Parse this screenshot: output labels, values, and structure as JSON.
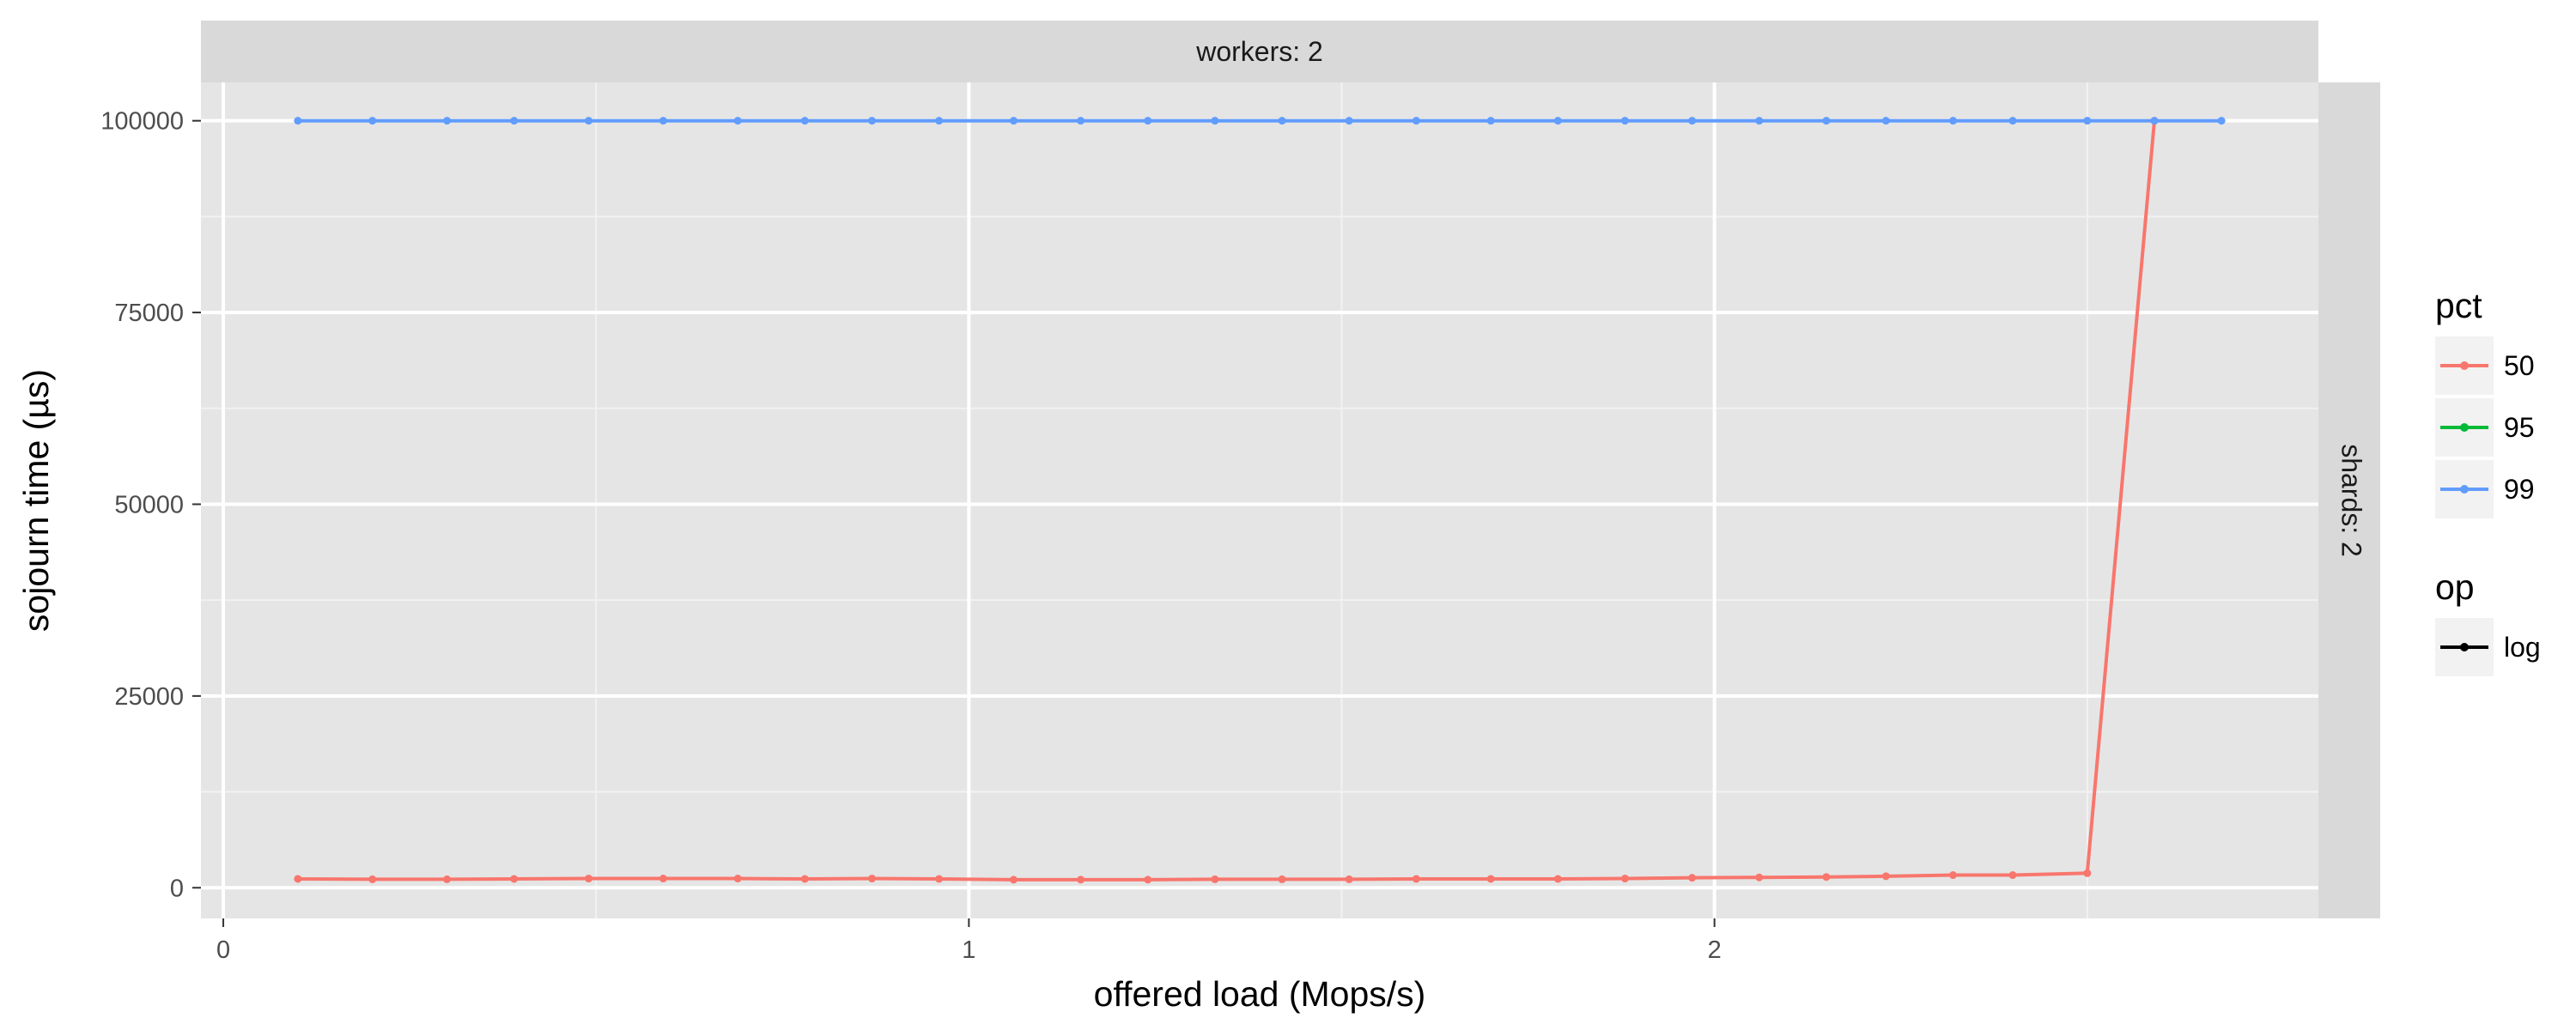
{
  "chart_data": {
    "type": "line",
    "facet": {
      "column_strip": "workers: 2",
      "row_strip": "shards: 2"
    },
    "xlabel": "offered load (Mops/s)",
    "ylabel": "sojourn time (µs)",
    "xlim": [
      -0.03,
      2.81
    ],
    "ylim": [
      -4000,
      105000
    ],
    "x_ticks": [
      0,
      1,
      2
    ],
    "x_tick_labels": [
      "0",
      "1",
      "2"
    ],
    "y_ticks": [
      0,
      25000,
      50000,
      75000,
      100000
    ],
    "y_tick_labels": [
      "0",
      "25000",
      "50000",
      "75000",
      "100000"
    ],
    "grid": true,
    "legend": {
      "placement": "right",
      "groups": [
        {
          "title": "pct",
          "entries": [
            {
              "label": "50",
              "color": "#F8766D"
            },
            {
              "label": "95",
              "color": "#00BA38"
            },
            {
              "label": "99",
              "color": "#619CFF"
            }
          ]
        },
        {
          "title": "op",
          "entries": [
            {
              "label": "log",
              "color": "#000000"
            }
          ]
        }
      ]
    },
    "series": [
      {
        "name": "50",
        "color": "#F8766D",
        "x": [
          0.1,
          0.2,
          0.3,
          0.39,
          0.49,
          0.59,
          0.69,
          0.78,
          0.87,
          0.96,
          1.06,
          1.15,
          1.24,
          1.33,
          1.42,
          1.51,
          1.6,
          1.7,
          1.79,
          1.88,
          1.97,
          2.06,
          2.15,
          2.23,
          2.32,
          2.4,
          2.5,
          2.59
        ],
        "y": [
          1150,
          1100,
          1100,
          1150,
          1200,
          1200,
          1200,
          1150,
          1200,
          1150,
          1050,
          1050,
          1050,
          1100,
          1100,
          1100,
          1150,
          1150,
          1150,
          1200,
          1300,
          1350,
          1400,
          1500,
          1650,
          1650,
          1900,
          100000
        ]
      },
      {
        "name": "99",
        "color": "#619CFF",
        "x": [
          0.1,
          0.2,
          0.3,
          0.39,
          0.49,
          0.59,
          0.69,
          0.78,
          0.87,
          0.96,
          1.06,
          1.15,
          1.24,
          1.33,
          1.42,
          1.51,
          1.6,
          1.7,
          1.79,
          1.88,
          1.97,
          2.06,
          2.15,
          2.23,
          2.32,
          2.4,
          2.5,
          2.59,
          2.68
        ],
        "y": [
          100000,
          100000,
          100000,
          100000,
          100000,
          100000,
          100000,
          100000,
          100000,
          100000,
          100000,
          100000,
          100000,
          100000,
          100000,
          100000,
          100000,
          100000,
          100000,
          100000,
          100000,
          100000,
          100000,
          100000,
          100000,
          100000,
          100000,
          100000,
          100000
        ]
      }
    ]
  }
}
